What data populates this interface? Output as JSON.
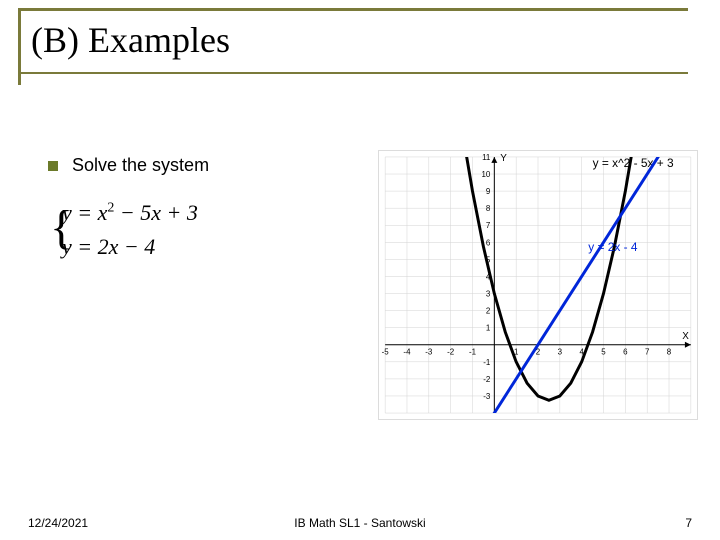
{
  "title": "(B) Examples",
  "bullet": {
    "label": "Solve the system",
    "bullet_color": "#6b7a2a"
  },
  "equations": {
    "line1_prefix": "y = x",
    "line1_exp": "2",
    "line1_suffix": " − 5x + 3",
    "line2": "y = 2x − 4"
  },
  "chart": {
    "type": "line",
    "background_color": "#ffffff",
    "border_color": "#dcdcdc",
    "grid_color": "#d3d3d3",
    "axis_color": "#000000",
    "xlim": [
      -5,
      9
    ],
    "ylim": [
      -4,
      11
    ],
    "xtick_step": 1,
    "ytick_step": 1,
    "xticks_labeled": [
      -5,
      -4,
      -3,
      -2,
      -1,
      1,
      2,
      3,
      4,
      5,
      6,
      7,
      8
    ],
    "yticks_labeled": [
      -3,
      -2,
      -1,
      1,
      2,
      3,
      4,
      5,
      6,
      7,
      8,
      9,
      10,
      11
    ],
    "tick_fontsize": 8,
    "axis_labels": {
      "x": "X",
      "y": "Y",
      "fontsize": 10,
      "color": "#000000"
    },
    "series": [
      {
        "name": "parabola",
        "label": "y = x^2 - 5x + 3",
        "label_color": "#000000",
        "label_pos": [
          4.5,
          10.4
        ],
        "color": "#000000",
        "line_width": 3.0,
        "points": [
          [
            -1.5,
            12.75
          ],
          [
            -1,
            9
          ],
          [
            -0.5,
            5.75
          ],
          [
            0,
            3
          ],
          [
            0.5,
            0.75
          ],
          [
            1,
            -1
          ],
          [
            1.5,
            -2.25
          ],
          [
            2,
            -3
          ],
          [
            2.5,
            -3.25
          ],
          [
            3,
            -3
          ],
          [
            3.5,
            -2.25
          ],
          [
            4,
            -1
          ],
          [
            4.5,
            0.75
          ],
          [
            5,
            3
          ],
          [
            5.5,
            5.75
          ],
          [
            6,
            9
          ],
          [
            6.5,
            12.75
          ]
        ]
      },
      {
        "name": "line",
        "label": "y = 2x - 4",
        "label_color": "#0026d9",
        "label_pos": [
          4.3,
          5.5
        ],
        "color": "#0026d9",
        "line_width": 3.0,
        "points": [
          [
            -1,
            -6
          ],
          [
            8,
            12
          ]
        ]
      }
    ]
  },
  "footer": {
    "date": "12/24/2021",
    "center": "IB Math SL1 - Santowski",
    "page": "7"
  },
  "colors": {
    "accent": "#7a7a3a"
  }
}
